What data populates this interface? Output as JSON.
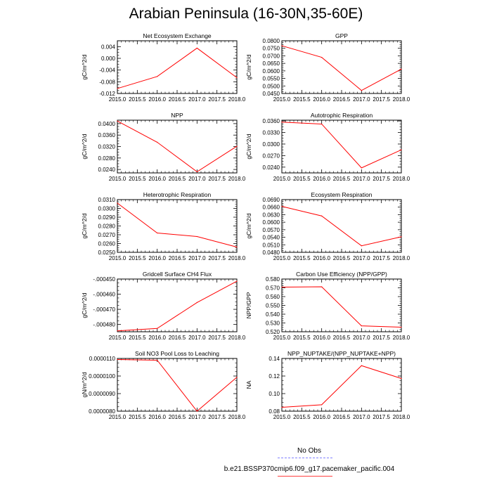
{
  "figure": {
    "title": "Arabian Peninsula (16-30N,35-60E)",
    "series_color": "#ff0000"
  },
  "legend": {
    "obs_label": "No Obs",
    "obs_color": "#7f7fff",
    "model_label": "b.e21.BSSP370cmip6.f09_g17.pacemaker_pacific.004",
    "model_color": "#ff0000"
  },
  "chart_data": [
    {
      "type": "line",
      "title": "Net Ecosystem Exchange",
      "ylabel": "gC/m^2/d",
      "x": [
        2015.0,
        2016.0,
        2017.0,
        2018.0
      ],
      "values": [
        -0.0103,
        -0.0062,
        0.0035,
        -0.0066
      ],
      "xlim": [
        2015.0,
        2018.0
      ],
      "ylim": [
        -0.012,
        0.006
      ],
      "xticks": [
        "2015.0",
        "2015.5",
        "2016.0",
        "2016.5",
        "2017.0",
        "2017.5",
        "2018.0"
      ],
      "yticks": [
        -0.012,
        -0.008,
        -0.004,
        0.0,
        0.004
      ],
      "ytick_labels": [
        "-0.012",
        "-0.008",
        "-0.004",
        "0.000",
        "0.004"
      ]
    },
    {
      "type": "line",
      "title": "GPP",
      "ylabel": "gC/m^2/d",
      "x": [
        2015.0,
        2016.0,
        2017.0,
        2018.0
      ],
      "values": [
        0.0767,
        0.069,
        0.047,
        0.0612
      ],
      "xlim": [
        2015.0,
        2018.0
      ],
      "ylim": [
        0.045,
        0.08
      ],
      "xticks": [
        "2015.0",
        "2015.5",
        "2016.0",
        "2016.5",
        "2017.0",
        "2017.5",
        "2018.0"
      ],
      "yticks": [
        0.045,
        0.05,
        0.055,
        0.06,
        0.065,
        0.07,
        0.075,
        0.08
      ],
      "ytick_labels": [
        "0.0450",
        "0.0500",
        "0.0550",
        "0.0600",
        "0.0650",
        "0.0700",
        "0.0750",
        "0.0800"
      ]
    },
    {
      "type": "line",
      "title": "NPP",
      "ylabel": "gC/m^2/d",
      "x": [
        2015.0,
        2016.0,
        2017.0,
        2018.0
      ],
      "values": [
        0.0409,
        0.0335,
        0.0232,
        0.0321
      ],
      "xlim": [
        2015.0,
        2018.0
      ],
      "ylim": [
        0.0228,
        0.0412
      ],
      "xticks": [
        "2015.0",
        "2015.5",
        "2016.0",
        "2016.5",
        "2017.0",
        "2017.5",
        "2018.0"
      ],
      "yticks": [
        0.024,
        0.028,
        0.032,
        0.036,
        0.04
      ],
      "ytick_labels": [
        "0.0240",
        "0.0280",
        "0.0320",
        "0.0360",
        "0.0400"
      ]
    },
    {
      "type": "line",
      "title": "Autotrophic Respiration",
      "ylabel": "gC/m^2/d",
      "x": [
        2015.0,
        2016.0,
        2017.0,
        2018.0
      ],
      "values": [
        0.0357,
        0.0352,
        0.0238,
        0.0285
      ],
      "xlim": [
        2015.0,
        2018.0
      ],
      "ylim": [
        0.0225,
        0.0362
      ],
      "xticks": [
        "2015.0",
        "2015.5",
        "2016.0",
        "2016.5",
        "2017.0",
        "2017.5",
        "2018.0"
      ],
      "yticks": [
        0.024,
        0.027,
        0.03,
        0.033,
        0.036
      ],
      "ytick_labels": [
        "0.0240",
        "0.0270",
        "0.0300",
        "0.0330",
        "0.0360"
      ]
    },
    {
      "type": "line",
      "title": "Heterotrophic Respiration",
      "ylabel": "gC/m^2/d",
      "x": [
        2015.0,
        2016.0,
        2017.0,
        2018.0
      ],
      "values": [
        0.0306,
        0.0272,
        0.0268,
        0.0256
      ],
      "xlim": [
        2015.0,
        2018.0
      ],
      "ylim": [
        0.025,
        0.031
      ],
      "xticks": [
        "2015.0",
        "2015.5",
        "2016.0",
        "2016.5",
        "2017.0",
        "2017.5",
        "2018.0"
      ],
      "yticks": [
        0.025,
        0.026,
        0.027,
        0.028,
        0.029,
        0.03,
        0.031
      ],
      "ytick_labels": [
        "0.0250",
        "0.0260",
        "0.0270",
        "0.0280",
        "0.0290",
        "0.0300",
        "0.0310"
      ]
    },
    {
      "type": "line",
      "title": "Ecosystem Respiration",
      "ylabel": "gC/m^2/d",
      "x": [
        2015.0,
        2016.0,
        2017.0,
        2018.0
      ],
      "values": [
        0.0663,
        0.0625,
        0.0506,
        0.0542
      ],
      "xlim": [
        2015.0,
        2018.0
      ],
      "ylim": [
        0.048,
        0.069
      ],
      "xticks": [
        "2015.0",
        "2015.5",
        "2016.0",
        "2016.5",
        "2017.0",
        "2017.5",
        "2018.0"
      ],
      "yticks": [
        0.048,
        0.051,
        0.054,
        0.057,
        0.06,
        0.063,
        0.066,
        0.069
      ],
      "ytick_labels": [
        "0.0480",
        "0.0510",
        "0.0540",
        "0.0570",
        "0.0600",
        "0.0630",
        "0.0660",
        "0.0690"
      ]
    },
    {
      "type": "line",
      "title": "Gridcell Surface CH4 Flux",
      "ylabel": "gC/m^2/d",
      "x": [
        2015.0,
        2016.0,
        2017.0,
        2018.0
      ],
      "values": [
        -0.0004842,
        -0.0004826,
        -0.0004655,
        -0.0004514
      ],
      "xlim": [
        2015.0,
        2018.0
      ],
      "ylim": [
        -0.0004848,
        -0.00045
      ],
      "xticks": [
        "2015.0",
        "2015.5",
        "2016.0",
        "2016.5",
        "2017.0",
        "2017.5",
        "2018.0"
      ],
      "yticks": [
        -0.00048,
        -0.00047,
        -0.00046,
        -0.00045
      ],
      "ytick_labels": [
        "-.000480",
        "-.000470",
        "-.000460",
        "-.000450"
      ]
    },
    {
      "type": "line",
      "title": "Carbon Use Efficiency (NPP/GPP)",
      "ylabel": "NPP/GPP",
      "x": [
        2015.0,
        2016.0,
        2017.0,
        2018.0
      ],
      "values": [
        0.5708,
        0.5712,
        0.5267,
        0.5252
      ],
      "xlim": [
        2015.0,
        2018.0
      ],
      "ylim": [
        0.52,
        0.58
      ],
      "xticks": [
        "2015.0",
        "2015.5",
        "2016.0",
        "2016.5",
        "2017.0",
        "2017.5",
        "2018.0"
      ],
      "yticks": [
        0.52,
        0.53,
        0.54,
        0.55,
        0.56,
        0.57,
        0.58
      ],
      "ytick_labels": [
        "0.520",
        "0.530",
        "0.540",
        "0.550",
        "0.560",
        "0.570",
        "0.580"
      ]
    },
    {
      "type": "line",
      "title": "Soil NO3 Pool Loss to Leaching",
      "ylabel": "gN/m^2/d",
      "x": [
        2015.0,
        2016.0,
        2017.0,
        2018.0
      ],
      "values": [
        1.094e-05,
        1.09e-05,
        8e-06,
        9.93e-06
      ],
      "xlim": [
        2015.0,
        2018.0
      ],
      "ylim": [
        8e-06,
        1.1e-05
      ],
      "xticks": [
        "2015.0",
        "2015.5",
        "2016.0",
        "2016.5",
        "2017.0",
        "2017.5",
        "2018.0"
      ],
      "yticks": [
        8e-06,
        9e-06,
        1e-05,
        1.1e-05
      ],
      "ytick_labels": [
        "0.0000080",
        "0.0000090",
        "0.0000100",
        "0.0000110"
      ]
    },
    {
      "type": "line",
      "title": "NPP_NUPTAKE/(NPP_NUPTAKE+NPP)",
      "ylabel": "NA",
      "x": [
        2015.0,
        2016.0,
        2017.0,
        2018.0
      ],
      "values": [
        0.0844,
        0.0873,
        0.1318,
        0.1172
      ],
      "xlim": [
        2015.0,
        2018.0
      ],
      "ylim": [
        0.08,
        0.14
      ],
      "xticks": [
        "2015.0",
        "2015.5",
        "2016.0",
        "2016.5",
        "2017.0",
        "2017.5",
        "2018.0"
      ],
      "yticks": [
        0.08,
        0.1,
        0.12,
        0.14
      ],
      "ytick_labels": [
        "0.08",
        "0.10",
        "0.12",
        "0.14"
      ]
    }
  ]
}
